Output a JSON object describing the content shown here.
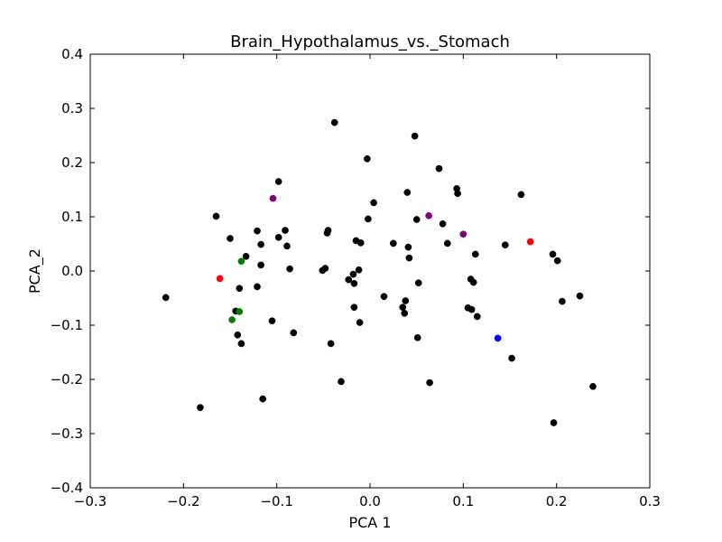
{
  "chart_data": {
    "type": "scatter",
    "title": "Brain_Hypothalamus_vs._Stomach",
    "xlabel": "PCA 1",
    "ylabel": "PCA_2",
    "xlim": [
      -0.3,
      0.3
    ],
    "ylim": [
      -0.4,
      0.4
    ],
    "x_ticks": [
      -0.3,
      -0.2,
      -0.1,
      0.0,
      0.1,
      0.2,
      0.3
    ],
    "x_tick_labels": [
      "−0.3",
      "−0.2",
      "−0.1",
      "0.0",
      "0.1",
      "0.2",
      "0.3"
    ],
    "y_ticks": [
      -0.4,
      -0.3,
      -0.2,
      -0.1,
      0.0,
      0.1,
      0.2,
      0.3,
      0.4
    ],
    "y_tick_labels": [
      "−0.4",
      "−0.3",
      "−0.2",
      "−0.1",
      "0.0",
      "0.1",
      "0.2",
      "0.3",
      "0.4"
    ],
    "grid": false,
    "legend": "none",
    "colors": {
      "black": "#000000",
      "red": "#ff0000",
      "green": "#008000",
      "purple": "#800080",
      "blue": "#0000ff"
    },
    "groups": [
      {
        "color": "#000000",
        "points": [
          [
            -0.219,
            -0.049
          ],
          [
            -0.182,
            -0.252
          ],
          [
            -0.165,
            0.101
          ],
          [
            -0.15,
            0.06
          ],
          [
            -0.144,
            -0.074
          ],
          [
            -0.142,
            -0.118
          ],
          [
            -0.14,
            -0.032
          ],
          [
            -0.138,
            -0.134
          ],
          [
            -0.133,
            0.027
          ],
          [
            -0.121,
            0.074
          ],
          [
            -0.121,
            -0.029
          ],
          [
            -0.117,
            0.049
          ],
          [
            -0.117,
            0.011
          ],
          [
            -0.115,
            -0.236
          ],
          [
            -0.105,
            -0.092
          ],
          [
            -0.098,
            0.165
          ],
          [
            -0.098,
            0.062
          ],
          [
            -0.091,
            0.075
          ],
          [
            -0.089,
            0.046
          ],
          [
            -0.086,
            0.004
          ],
          [
            -0.082,
            -0.114
          ],
          [
            -0.051,
            0.001
          ],
          [
            -0.048,
            0.005
          ],
          [
            -0.046,
            0.07
          ],
          [
            -0.045,
            0.075
          ],
          [
            -0.042,
            -0.134
          ],
          [
            -0.038,
            0.274
          ],
          [
            -0.031,
            -0.204
          ],
          [
            -0.023,
            -0.016
          ],
          [
            -0.018,
            -0.006
          ],
          [
            -0.017,
            -0.067
          ],
          [
            -0.017,
            -0.023
          ],
          [
            -0.015,
            0.056
          ],
          [
            -0.012,
            0.002
          ],
          [
            -0.01,
            0.052
          ],
          [
            -0.011,
            -0.095
          ],
          [
            -0.003,
            0.207
          ],
          [
            -0.002,
            0.096
          ],
          [
            0.004,
            0.126
          ],
          [
            0.015,
            -0.047
          ],
          [
            0.025,
            0.051
          ],
          [
            0.035,
            -0.067
          ],
          [
            0.037,
            -0.078
          ],
          [
            0.038,
            -0.055
          ],
          [
            0.04,
            0.145
          ],
          [
            0.041,
            0.044
          ],
          [
            0.042,
            0.024
          ],
          [
            0.048,
            0.249
          ],
          [
            0.05,
            0.095
          ],
          [
            0.051,
            -0.123
          ],
          [
            0.052,
            -0.022
          ],
          [
            0.064,
            -0.206
          ],
          [
            0.074,
            0.189
          ],
          [
            0.078,
            0.087
          ],
          [
            0.083,
            0.051
          ],
          [
            0.093,
            0.152
          ],
          [
            0.094,
            0.143
          ],
          [
            0.105,
            -0.068
          ],
          [
            0.108,
            -0.015
          ],
          [
            0.109,
            -0.071
          ],
          [
            0.111,
            -0.021
          ],
          [
            0.113,
            0.031
          ],
          [
            0.115,
            -0.084
          ],
          [
            0.145,
            0.048
          ],
          [
            0.152,
            -0.161
          ],
          [
            0.162,
            0.141
          ],
          [
            0.196,
            0.031
          ],
          [
            0.197,
            -0.28
          ],
          [
            0.201,
            0.019
          ],
          [
            0.206,
            -0.056
          ],
          [
            0.225,
            -0.046
          ],
          [
            0.239,
            -0.213
          ]
        ]
      },
      {
        "color": "#ff0000",
        "points": [
          [
            -0.161,
            -0.014
          ],
          [
            0.172,
            0.054
          ]
        ]
      },
      {
        "color": "#008000",
        "points": [
          [
            -0.138,
            0.018
          ],
          [
            -0.14,
            -0.075
          ],
          [
            -0.148,
            -0.09
          ]
        ]
      },
      {
        "color": "#800080",
        "points": [
          [
            -0.104,
            0.134
          ],
          [
            0.063,
            0.102
          ],
          [
            0.1,
            0.068
          ]
        ]
      },
      {
        "color": "#0000ff",
        "points": [
          [
            0.137,
            -0.124
          ]
        ]
      }
    ]
  }
}
